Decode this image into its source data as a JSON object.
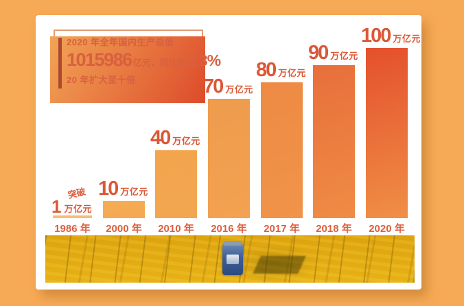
{
  "page": {
    "background_color": "#F7AA55",
    "card_color": "#FFFFFF"
  },
  "infobox": {
    "line1": "2020 年全年国内生产总值",
    "gdp_value": "1015986",
    "gdp_unit": "亿元，同比增",
    "growth": "2.3%",
    "line3": "20 年扩大至十倍",
    "text_color": "#D8603F",
    "border_color": "#E39A74",
    "shadow_gradient": [
      "#F2A456",
      "#DD4B2B"
    ],
    "accent_bar_color": "#AC4A2F"
  },
  "chart_data": {
    "type": "bar",
    "title": "",
    "categories": [
      "1986 年",
      "2000 年",
      "2010 年",
      "2016 年",
      "2017 年",
      "2018 年",
      "2020 年"
    ],
    "values": [
      1,
      10,
      40,
      70,
      80,
      90,
      100
    ],
    "unit": "万亿元",
    "ylim": [
      0,
      100
    ],
    "grid": false,
    "legend": null,
    "label_color": "#DB5837",
    "year_label_color": "#DD5F3E",
    "bars": [
      {
        "year": "1986 年",
        "value": 1,
        "num": "1",
        "unit": "万亿元",
        "prefix": "突破",
        "color_top": "#F3BF74",
        "color_bottom": "#F3BF74"
      },
      {
        "year": "2000 年",
        "value": 10,
        "num": "10",
        "unit": "万亿元",
        "prefix": "",
        "color_top": "#F4AC55",
        "color_bottom": "#F3A952"
      },
      {
        "year": "2010 年",
        "value": 40,
        "num": "40",
        "unit": "万亿元",
        "prefix": "",
        "color_top": "#F3A54E",
        "color_bottom": "#F2A650"
      },
      {
        "year": "2016 年",
        "value": 70,
        "num": "70",
        "unit": "万亿元",
        "prefix": "",
        "color_top": "#F09B4D",
        "color_bottom": "#F2A251"
      },
      {
        "year": "2017 年",
        "value": 80,
        "num": "80",
        "unit": "万亿元",
        "prefix": "",
        "color_top": "#EE8A43",
        "color_bottom": "#F09449"
      },
      {
        "year": "2018 年",
        "value": 90,
        "num": "90",
        "unit": "万亿元",
        "prefix": "",
        "color_top": "#E86F3B",
        "color_bottom": "#EF8C45"
      },
      {
        "year": "2020 年",
        "value": 100,
        "num": "100",
        "unit": "万亿元",
        "prefix": "",
        "color_top": "#E4502D",
        "color_bottom": "#F08F46"
      }
    ]
  },
  "photo": {
    "alt": "金色麦田航拍与蓝色收割机"
  }
}
